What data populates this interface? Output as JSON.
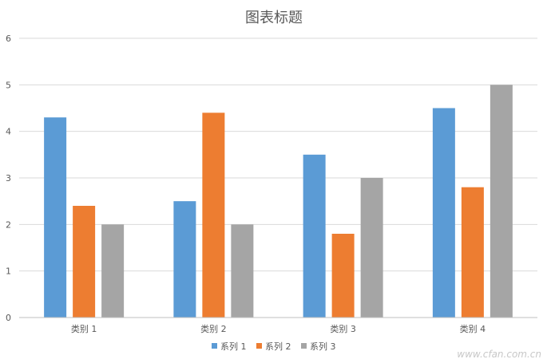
{
  "chart_data": {
    "type": "bar",
    "title": "图表标题",
    "categories": [
      "类别 1",
      "类别 2",
      "类别 3",
      "类别 4"
    ],
    "series": [
      {
        "name": "系列 1",
        "values": [
          4.3,
          2.5,
          3.5,
          4.5
        ],
        "color": "#5b9bd5"
      },
      {
        "name": "系列 2",
        "values": [
          2.4,
          4.4,
          1.8,
          2.8
        ],
        "color": "#ed7d31"
      },
      {
        "name": "系列 3",
        "values": [
          2.0,
          2.0,
          3.0,
          5.0
        ],
        "color": "#a5a5a5"
      }
    ],
    "ylim": [
      0,
      6
    ],
    "yticks": [
      0,
      1,
      2,
      3,
      4,
      5,
      6
    ],
    "grid": true,
    "legend": "bottom"
  },
  "watermark": "www.cfan.com.cn"
}
